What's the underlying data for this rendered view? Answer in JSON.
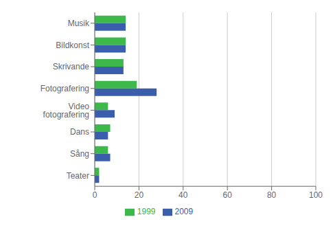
{
  "chart_data": {
    "type": "bar",
    "orientation": "horizontal",
    "categories": [
      "Musik",
      "Bildkonst",
      "Skrivande",
      "Fotografering",
      "Video fotografering",
      "Dans",
      "Sång",
      "Teater"
    ],
    "series": [
      {
        "name": "1999",
        "color": "#3db84a",
        "values": [
          14,
          14,
          13,
          19,
          6,
          7,
          6,
          2
        ]
      },
      {
        "name": "2009",
        "color": "#3a5eac",
        "values": [
          14,
          14,
          13,
          28,
          9,
          6,
          7,
          2
        ]
      }
    ],
    "xlim": [
      0,
      100
    ],
    "xticks": [
      0,
      20,
      40,
      60,
      80,
      100
    ],
    "grid": true,
    "legend": "bottom"
  }
}
